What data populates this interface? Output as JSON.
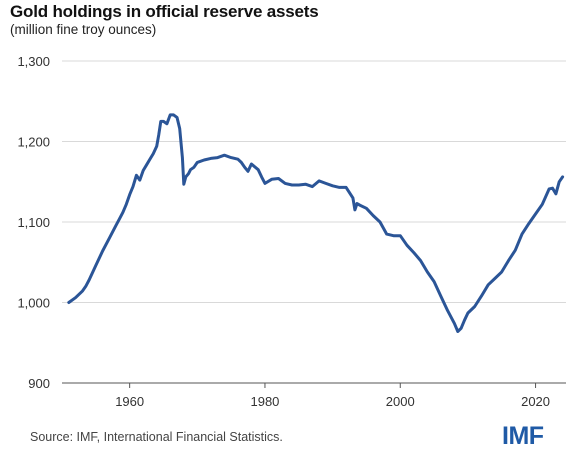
{
  "chart_data": {
    "type": "line",
    "title": "Gold holdings in official reserve assets",
    "subtitle": "(million fine troy ounces)",
    "xlabel": "",
    "ylabel": "",
    "xlim": [
      1950,
      2024.5
    ],
    "ylim": [
      900,
      1300
    ],
    "x_ticks": [
      1960,
      1980,
      2000,
      2020
    ],
    "y_ticks": [
      900,
      1000,
      1100,
      1200,
      1300
    ],
    "y_tick_labels": [
      "900",
      "1,000",
      "1,100",
      "1,200",
      "1,300"
    ],
    "grid": "horizontal",
    "line_color": "#2b5597",
    "series": [
      {
        "x": [
          1951.0,
          1952.0,
          1953.0,
          1953.5,
          1954.0,
          1955.0,
          1956.0,
          1957.0,
          1958.0,
          1958.5,
          1959.0,
          1959.5,
          1960.0,
          1960.5,
          1961.0,
          1961.5,
          1962.0,
          1962.5,
          1963.0,
          1963.5,
          1964.0,
          1964.3,
          1964.6,
          1965.0,
          1965.5,
          1966.0,
          1966.5,
          1967.0,
          1967.4,
          1967.8,
          1968.0,
          1968.3,
          1968.7,
          1969.0,
          1969.5,
          1970.0,
          1971.0,
          1972.0,
          1973.0,
          1974.0,
          1975.0,
          1976.0,
          1976.5,
          1977.0,
          1977.5,
          1978.0,
          1979.0,
          1979.5,
          1980.0,
          1981.0,
          1982.0,
          1983.0,
          1984.0,
          1985.0,
          1986.0,
          1987.0,
          1988.0,
          1989.0,
          1990.0,
          1991.0,
          1992.0,
          1993.0,
          1993.3,
          1993.6,
          1994.0,
          1995.0,
          1996.0,
          1997.0,
          1998.0,
          1999.0,
          2000.0,
          2001.0,
          2002.0,
          2003.0,
          2004.0,
          2005.0,
          2006.0,
          2007.0,
          2008.0,
          2008.5,
          2009.0,
          2009.5,
          2010.0,
          2011.0,
          2012.0,
          2013.0,
          2014.0,
          2015.0,
          2016.0,
          2017.0,
          2018.0,
          2019.0,
          2020.0,
          2021.0,
          2022.0,
          2022.5,
          2023.0,
          2023.5,
          2024.0
        ],
        "values": [
          1000,
          1006,
          1014,
          1020,
          1028,
          1046,
          1064,
          1080,
          1096,
          1104,
          1112,
          1122,
          1134,
          1144,
          1158,
          1152,
          1164,
          1171,
          1178,
          1185,
          1194,
          1208,
          1225,
          1225,
          1222,
          1233,
          1233,
          1230,
          1216,
          1180,
          1147,
          1156,
          1160,
          1165,
          1168,
          1174,
          1177,
          1179,
          1180,
          1183,
          1180,
          1178,
          1174,
          1168,
          1163,
          1172,
          1165,
          1156,
          1148,
          1153,
          1154,
          1148,
          1146,
          1146,
          1147,
          1144,
          1151,
          1148,
          1145,
          1143,
          1143,
          1130,
          1115,
          1123,
          1121,
          1117,
          1108,
          1100,
          1085,
          1083,
          1083,
          1071,
          1062,
          1052,
          1038,
          1026,
          1008,
          990,
          974,
          964,
          968,
          978,
          987,
          995,
          1008,
          1022,
          1030,
          1038,
          1052,
          1065,
          1085,
          1098,
          1110,
          1122,
          1141,
          1142,
          1135,
          1150,
          1156
        ]
      }
    ]
  },
  "footer": {
    "source": "Source: IMF, International Financial Statistics.",
    "logo_text": "IMF"
  }
}
